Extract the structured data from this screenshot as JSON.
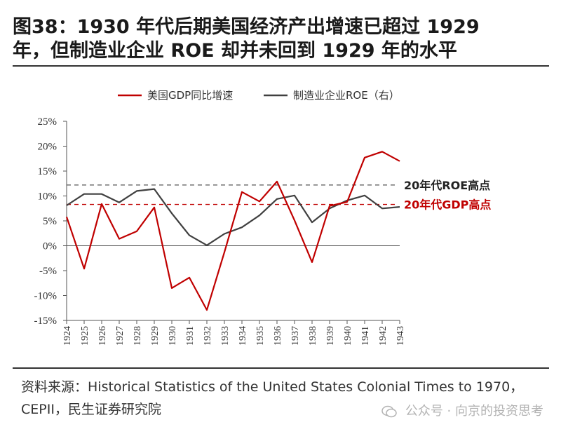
{
  "title_line1": "图38：1930 年代后期美国经济产出增速已超过 1929",
  "title_line2": "年，但制造业企业 ROE 却并未回到 1929 年的水平",
  "source": "资料来源：Historical Statistics of the United States Colonial Times to 1970，CEPII，民生证券研究院",
  "watermark": "公众号 · 向京的投资思考",
  "colors": {
    "gdp": "#c00000",
    "roe": "#404040",
    "axis": "#555555"
  },
  "chart_data": {
    "type": "line",
    "categories": [
      "1924",
      "1925",
      "1926",
      "1927",
      "1928",
      "1929",
      "1930",
      "1931",
      "1932",
      "1933",
      "1934",
      "1935",
      "1936",
      "1937",
      "1938",
      "1939",
      "1940",
      "1941",
      "1942",
      "1943"
    ],
    "ylim": [
      -15,
      25
    ],
    "yticks": [
      "-15%",
      "-10%",
      "-5%",
      "0%",
      "5%",
      "10%",
      "15%",
      "20%",
      "25%"
    ],
    "yticks_values": [
      -15,
      -10,
      -5,
      0,
      5,
      10,
      15,
      20,
      25
    ],
    "series": [
      {
        "name": "美国GDP同比增速",
        "color": "#c00000",
        "values": [
          5.8,
          -4.6,
          8.4,
          1.4,
          2.9,
          7.7,
          -8.5,
          -6.4,
          -12.9,
          -1.3,
          10.8,
          8.9,
          12.9,
          5.1,
          -3.3,
          8.0,
          8.8,
          17.7,
          18.9,
          17.0
        ]
      },
      {
        "name": "制造业企业ROE（右）",
        "color": "#404040",
        "values": [
          8.1,
          10.4,
          10.4,
          8.7,
          11.0,
          11.4,
          6.5,
          2.1,
          0.1,
          2.4,
          3.7,
          6.1,
          9.4,
          10.1,
          4.7,
          7.5,
          9.1,
          10.1,
          7.5,
          7.8
        ]
      }
    ],
    "reference_lines": [
      {
        "label": "20年代ROE高点",
        "value": 12.2,
        "color": "#555555",
        "text_color": "#222222"
      },
      {
        "label": "20年代GDP高点",
        "value": 8.3,
        "color": "#c00000",
        "text_color": "#c00000"
      }
    ]
  }
}
